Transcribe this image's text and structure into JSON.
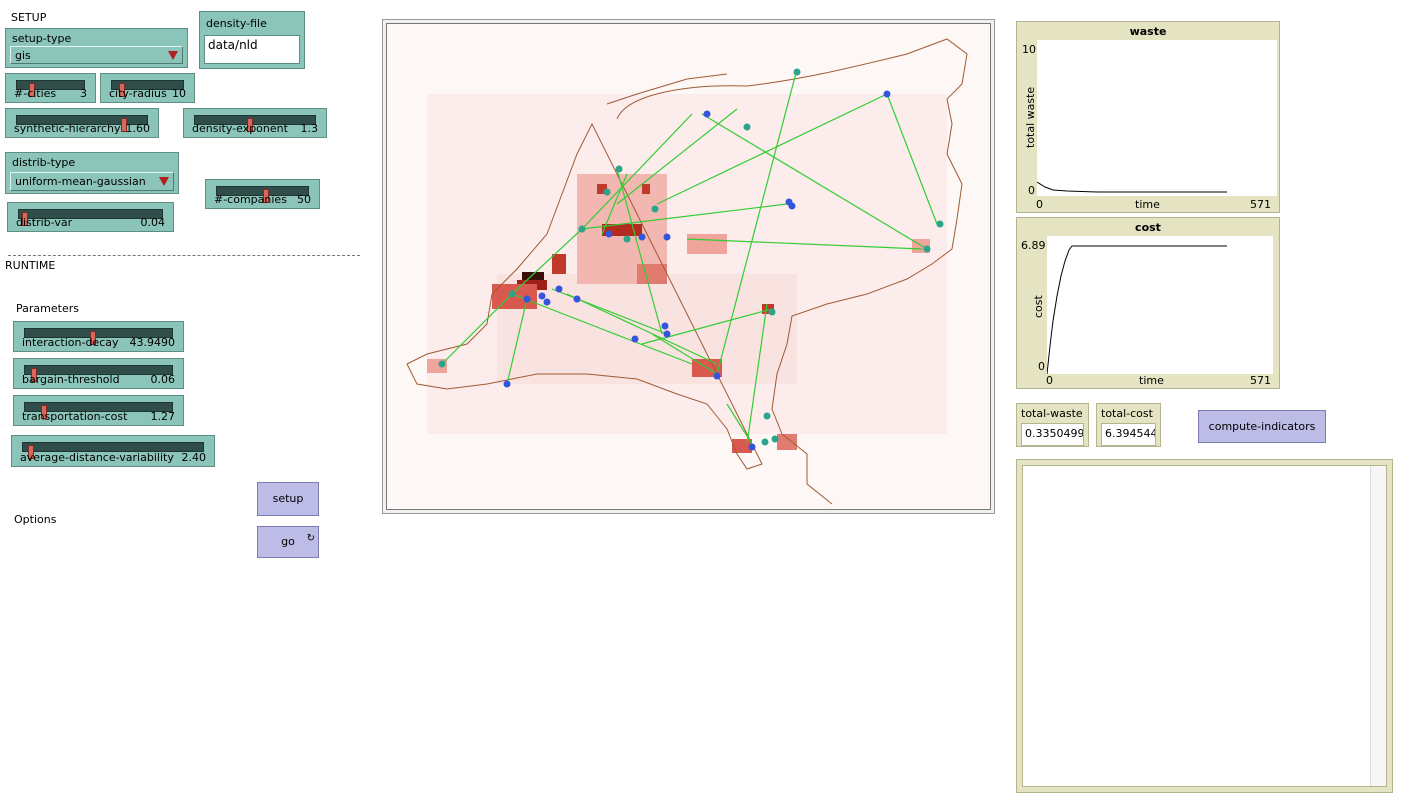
{
  "sections": {
    "setup": "SETUP",
    "runtime": "RUNTIME",
    "parameters": "Parameters",
    "options": "Options"
  },
  "setup_type": {
    "label": "setup-type",
    "value": "gis"
  },
  "density_file": {
    "label": "density-file",
    "value": "data/nld"
  },
  "sliders": {
    "n_cities": {
      "name": "#-cities",
      "value": "3",
      "fraction": 0.18
    },
    "city_radius": {
      "name": "city-radius",
      "value": "10",
      "fraction": 0.1
    },
    "synthetic_hierarchy": {
      "name": "synthetic-hierarchy",
      "value": "1.60",
      "fraction": 0.8
    },
    "density_exponent": {
      "name": "density-exponent",
      "value": "1.3",
      "fraction": 0.43
    },
    "n_companies": {
      "name": "#-companies",
      "value": "50",
      "fraction": 0.5
    },
    "distrib_var": {
      "name": "distrib-var",
      "value": "0.04",
      "fraction": 0.02
    },
    "interaction_decay": {
      "name": "interaction-decay",
      "value": "43.9490",
      "fraction": 0.44
    },
    "bargain_threshold": {
      "name": "bargain-threshold",
      "value": "0.06",
      "fraction": 0.06
    },
    "transportation_cost": {
      "name": "transportation-cost",
      "value": "1.27",
      "fraction": 0.13
    },
    "average_distance_variability": {
      "name": "average-distance-variability",
      "value": "2.40",
      "fraction": 0.03
    }
  },
  "distrib_type": {
    "label": "distrib-type",
    "value": "uniform-mean-gaussian"
  },
  "buttons": {
    "setup": "setup",
    "go": "go",
    "go_icon": "↻",
    "compute": "compute-indicators"
  },
  "plots": {
    "waste": {
      "title": "waste",
      "ylabel": "total waste",
      "xlabel": "time",
      "xmin": "0",
      "xmax": "571",
      "ymin": "0",
      "ymax": "10"
    },
    "cost": {
      "title": "cost",
      "ylabel": "cost",
      "xlabel": "time",
      "xmin": "0",
      "xmax": "571",
      "ymin": "0",
      "ymax": "6.89"
    }
  },
  "monitors": {
    "total_waste": {
      "label": "total-waste",
      "value": "0.33504999"
    },
    "total_cost": {
      "label": "total-cost",
      "value": "6.394544"
    }
  },
  "colors": {
    "widget": "#8bc4b8",
    "button": "#bcbce6",
    "monitor": "#e4e4c2",
    "links": "#33cc33",
    "cities_blue": "#3355dd",
    "cities_teal": "#2aa58a"
  }
}
